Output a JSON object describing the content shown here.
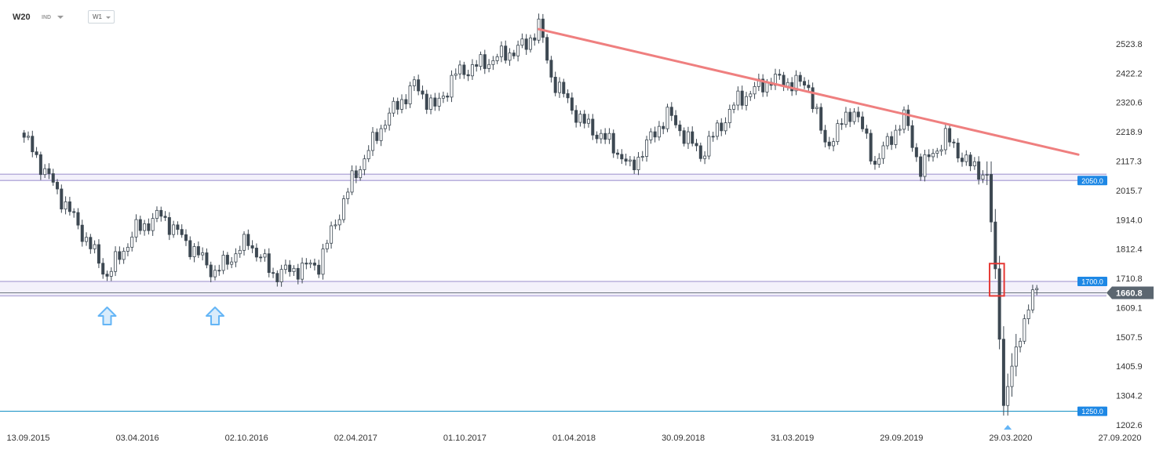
{
  "toolbar": {
    "symbol": "W20",
    "instrument_type": "IND",
    "timeframe": "W1"
  },
  "colors": {
    "bull_candle": "#ffffff",
    "bear_candle": "#3d4852",
    "wick": "#3d4852",
    "level_line": "#b9b0dc",
    "support_line": "#2196c8",
    "trendline": "#ef7f7f",
    "price_label_bg": "#1e88e5",
    "current_price_bg": "#5b6670",
    "arrow": "#64b5f6",
    "highlight_box": "#e53935"
  },
  "chart_data": {
    "type": "candlestick",
    "timeframe": "W1",
    "y_axis_ticks": [
      2523.8,
      2422.2,
      2320.6,
      2218.9,
      2117.3,
      2015.7,
      1914.0,
      1812.4,
      1710.8,
      1609.1,
      1507.5,
      1405.9,
      1304.2,
      1202.6
    ],
    "x_axis_ticks": [
      "13.09.2015",
      "03.04.2016",
      "02.10.2016",
      "02.04.2017",
      "01.10.2017",
      "01.04.2018",
      "30.09.2018",
      "31.03.2019",
      "29.09.2019",
      "29.03.2020",
      "27.09.2020"
    ],
    "x_range": [
      "2015-09-13",
      "2020-09-27"
    ],
    "ylim": [
      1202.6,
      2523.8
    ],
    "current_price": 1660.8,
    "horizontal_levels": [
      {
        "value": 2050.0,
        "label": "2050.0",
        "zone_upper": 2072.0,
        "style": "zone"
      },
      {
        "value": 1700.0,
        "label": "1700.0",
        "zone_lower": 1650.0,
        "style": "zone"
      },
      {
        "value": 1250.0,
        "label": "1250.0",
        "style": "support"
      }
    ],
    "trendline": [
      {
        "date": "2018-01-21",
        "value": 2575
      },
      {
        "date": "2020-07-19",
        "value": 2140
      }
    ],
    "up_arrows": [
      "2016-01-24",
      "2016-07-24",
      "2020-03-22"
    ],
    "highlight_box": {
      "date_start": "2020-02-23",
      "date_end": "2020-03-08",
      "price_high": 1762,
      "price_low": 1650
    },
    "anchors": [
      {
        "date": "2015-09-06",
        "close": 2200
      },
      {
        "date": "2015-10-18",
        "close": 2060
      },
      {
        "date": "2015-12-13",
        "close": 1870
      },
      {
        "date": "2016-01-24",
        "close": 1720
      },
      {
        "date": "2016-03-13",
        "close": 1880
      },
      {
        "date": "2016-04-24",
        "close": 1930
      },
      {
        "date": "2016-07-24",
        "close": 1730
      },
      {
        "date": "2016-09-18",
        "close": 1840
      },
      {
        "date": "2016-10-30",
        "close": 1725
      },
      {
        "date": "2017-01-15",
        "close": 1760
      },
      {
        "date": "2017-03-12",
        "close": 2050
      },
      {
        "date": "2017-05-07",
        "close": 2260
      },
      {
        "date": "2017-06-25",
        "close": 2380
      },
      {
        "date": "2017-07-30",
        "close": 2300
      },
      {
        "date": "2017-09-03",
        "close": 2420
      },
      {
        "date": "2017-11-05",
        "close": 2470
      },
      {
        "date": "2017-12-31",
        "close": 2520
      },
      {
        "date": "2018-01-21",
        "close": 2590
      },
      {
        "date": "2018-02-11",
        "close": 2410
      },
      {
        "date": "2018-04-01",
        "close": 2260
      },
      {
        "date": "2018-05-27",
        "close": 2170
      },
      {
        "date": "2018-06-24",
        "close": 2090
      },
      {
        "date": "2018-08-26",
        "close": 2280
      },
      {
        "date": "2018-10-21",
        "close": 2140
      },
      {
        "date": "2018-12-23",
        "close": 2330
      },
      {
        "date": "2019-02-17",
        "close": 2400
      },
      {
        "date": "2019-04-21",
        "close": 2380
      },
      {
        "date": "2019-05-19",
        "close": 2170
      },
      {
        "date": "2019-07-07",
        "close": 2300
      },
      {
        "date": "2019-08-11",
        "close": 2110
      },
      {
        "date": "2019-09-29",
        "close": 2270
      },
      {
        "date": "2019-10-27",
        "close": 2090
      },
      {
        "date": "2019-12-08",
        "close": 2200
      },
      {
        "date": "2020-01-19",
        "close": 2100
      },
      {
        "date": "2020-02-16",
        "close": 2070
      },
      {
        "date": "2020-03-01",
        "close": 1740
      },
      {
        "date": "2020-03-15",
        "close": 1270
      },
      {
        "date": "2020-04-05",
        "close": 1470
      },
      {
        "date": "2020-04-26",
        "close": 1620
      },
      {
        "date": "2020-05-10",
        "close": 1665
      }
    ]
  }
}
